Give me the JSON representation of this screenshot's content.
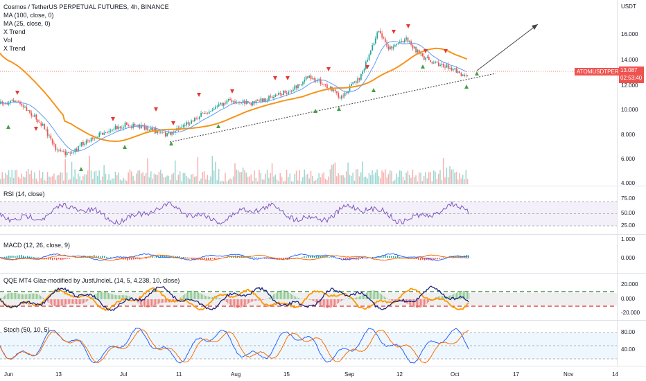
{
  "main": {
    "title": "Cosmos / TetherUS PERPETUAL FUTURES, 4h, BINANCE",
    "indicators": [
      "MA (100, close, 0)",
      "MA (25, close, 0)",
      "X Trend",
      "Vol",
      "X Trend"
    ],
    "currency": "USDT",
    "symbol": "ATOMUSDTPERP",
    "last_price": "13.087",
    "countdown": "02:53:40",
    "price_ticks": [
      "16.000",
      "14.000",
      "12.000",
      "10.000",
      "8.000",
      "6.000",
      "4.000"
    ]
  },
  "panes": {
    "rsi": {
      "title": "RSI (14, close)",
      "ticks": [
        "75.00",
        "50.00",
        "25.00"
      ]
    },
    "macd": {
      "title": "MACD (12, 26, close, 9)",
      "ticks": [
        "1.000",
        "0.000"
      ]
    },
    "qqe": {
      "title": "QQE MT4 Glaz-modified by JustUncleL (14, 5, 4.238, 10, close)",
      "ticks": [
        "20.000",
        "0.000",
        "-20.000"
      ]
    },
    "stoch": {
      "title": "Stoch (50, 10, 5)",
      "ticks": [
        "80.00",
        "40.00"
      ]
    }
  },
  "time_axis": [
    "Jun",
    "13",
    "Jul",
    "11",
    "Aug",
    "15",
    "Sep",
    "12",
    "Oct",
    "17",
    "Nov",
    "14"
  ],
  "colors": {
    "bull": "#26a69a",
    "bear": "#ef5350",
    "ma100": "#f7931a",
    "ma25": "#5b9cf6",
    "rsi": "#7e57c2",
    "macd": "#2962ff",
    "signal": "#ff6d00",
    "qqe_line": "#1a237e",
    "stoch_k": "#2962ff",
    "stoch_d": "#ff6d00"
  }
}
